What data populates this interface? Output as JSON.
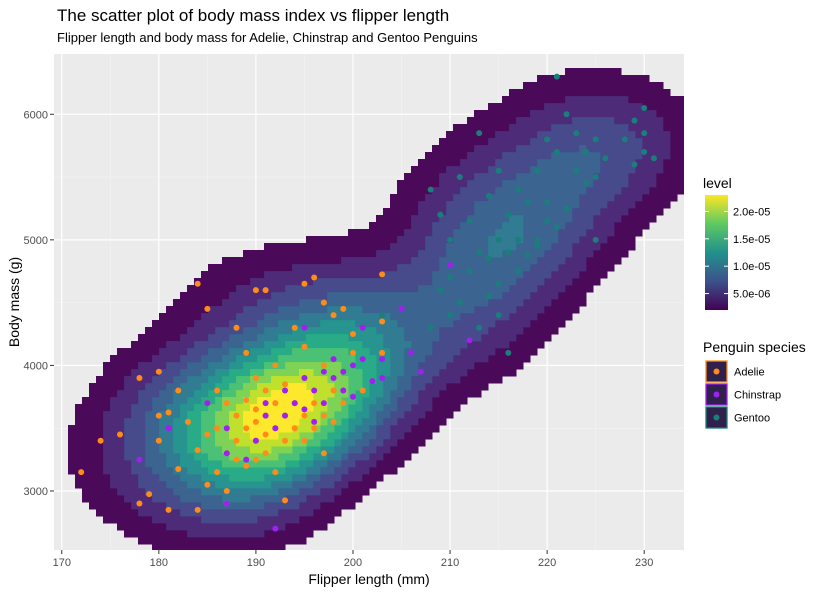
{
  "chart_data": {
    "type": "scatter",
    "title": "The scatter plot of body mass index vs flipper length",
    "subtitle": "Flipper length and body mass for Adelie, Chinstrap and Gentoo Penguins",
    "xlabel": "Flipper length (mm)",
    "ylabel": "Body mass (g)",
    "xlim": [
      169.2,
      234.1
    ],
    "ylim": [
      2530,
      6480
    ],
    "x_ticks": [
      170,
      180,
      190,
      200,
      210,
      220,
      230
    ],
    "y_ticks": [
      3000,
      4000,
      5000,
      6000
    ],
    "grid": true,
    "density_overlay": {
      "legend_title": "level",
      "legend_labels": [
        "2.0e-05",
        "1.5e-05",
        "1.0e-05",
        "5.0e-06"
      ],
      "legend_values": [
        2e-05,
        1.5e-05,
        1e-05,
        5e-06
      ],
      "range": [
        2e-06,
        2.3e-05
      ],
      "palette": [
        "#440154",
        "#482475",
        "#414487",
        "#355f8d",
        "#2a788e",
        "#21918c",
        "#22a884",
        "#44bf70",
        "#7ad151",
        "#bddf26",
        "#fde725"
      ]
    },
    "legend": {
      "title": "Penguin species",
      "position": "right"
    },
    "series": [
      {
        "name": "Adelie",
        "color": "#ff8c1a",
        "points": [
          [
            172,
            3150
          ],
          [
            174,
            3400
          ],
          [
            176,
            3450
          ],
          [
            178,
            3900
          ],
          [
            178,
            2900
          ],
          [
            179,
            2975
          ],
          [
            180,
            3600
          ],
          [
            180,
            3950
          ],
          [
            180,
            3400
          ],
          [
            181,
            2850
          ],
          [
            181,
            3625
          ],
          [
            182,
            3175
          ],
          [
            182,
            3800
          ],
          [
            183,
            3550
          ],
          [
            184,
            3325
          ],
          [
            184,
            4650
          ],
          [
            184,
            2850
          ],
          [
            185,
            3700
          ],
          [
            185,
            3450
          ],
          [
            185,
            4450
          ],
          [
            185,
            3050
          ],
          [
            186,
            3800
          ],
          [
            186,
            3500
          ],
          [
            186,
            3150
          ],
          [
            187,
            3700
          ],
          [
            187,
            3300
          ],
          [
            187,
            3000
          ],
          [
            187,
            2900
          ],
          [
            188,
            4300
          ],
          [
            188,
            3600
          ],
          [
            188,
            3400
          ],
          [
            188,
            3250
          ],
          [
            189,
            3725
          ],
          [
            189,
            3500
          ],
          [
            189,
            3200
          ],
          [
            189,
            4100
          ],
          [
            190,
            3650
          ],
          [
            190,
            3550
          ],
          [
            190,
            3400
          ],
          [
            190,
            3900
          ],
          [
            190,
            4600
          ],
          [
            190,
            3250
          ],
          [
            191,
            3600
          ],
          [
            191,
            3800
          ],
          [
            191,
            3450
          ],
          [
            191,
            4600
          ],
          [
            191,
            3300
          ],
          [
            192,
            3500
          ],
          [
            192,
            3700
          ],
          [
            192,
            4000
          ],
          [
            192,
            3150
          ],
          [
            193,
            3600
          ],
          [
            193,
            3400
          ],
          [
            193,
            3850
          ],
          [
            193,
            2925
          ],
          [
            194,
            3500
          ],
          [
            194,
            3700
          ],
          [
            194,
            4300
          ],
          [
            195,
            3600
          ],
          [
            195,
            3900
          ],
          [
            195,
            4650
          ],
          [
            195,
            3400
          ],
          [
            195,
            4150
          ],
          [
            196,
            3700
          ],
          [
            196,
            4700
          ],
          [
            196,
            3500
          ],
          [
            197,
            3600
          ],
          [
            197,
            4500
          ],
          [
            197,
            3300
          ],
          [
            197,
            4000
          ],
          [
            198,
            3800
          ],
          [
            198,
            4400
          ],
          [
            198,
            3550
          ],
          [
            199,
            4450
          ],
          [
            199,
            3700
          ],
          [
            200,
            4250
          ],
          [
            200,
            4100
          ],
          [
            201,
            3800
          ],
          [
            203,
            4725
          ],
          [
            203,
            4350
          ],
          [
            203,
            4100
          ]
        ]
      },
      {
        "name": "Chinstrap",
        "color": "#a020f0",
        "points": [
          [
            178,
            3250
          ],
          [
            181,
            3500
          ],
          [
            185,
            3700
          ],
          [
            187,
            3500
          ],
          [
            187,
            3300
          ],
          [
            187,
            2900
          ],
          [
            189,
            3250
          ],
          [
            190,
            3400
          ],
          [
            191,
            3700
          ],
          [
            191,
            3600
          ],
          [
            192,
            3500
          ],
          [
            192,
            2700
          ],
          [
            193,
            3600
          ],
          [
            193,
            3800
          ],
          [
            194,
            3700
          ],
          [
            195,
            3650
          ],
          [
            195,
            3900
          ],
          [
            195,
            4300
          ],
          [
            196,
            3550
          ],
          [
            196,
            3800
          ],
          [
            197,
            3950
          ],
          [
            197,
            3700
          ],
          [
            198,
            3900
          ],
          [
            198,
            4050
          ],
          [
            199,
            3950
          ],
          [
            199,
            3800
          ],
          [
            200,
            4000
          ],
          [
            200,
            3750
          ],
          [
            201,
            4050
          ],
          [
            201,
            4300
          ],
          [
            202,
            3875
          ],
          [
            203,
            4050
          ],
          [
            203,
            3900
          ],
          [
            205,
            4450
          ],
          [
            206,
            4100
          ],
          [
            207,
            3950
          ],
          [
            210,
            4800
          ],
          [
            212,
            4200
          ]
        ]
      },
      {
        "name": "Gentoo",
        "color": "#1a7f7a",
        "points": [
          [
            203,
            4400
          ],
          [
            208,
            4300
          ],
          [
            208,
            5400
          ],
          [
            209,
            4600
          ],
          [
            209,
            5200
          ],
          [
            210,
            4400
          ],
          [
            210,
            4700
          ],
          [
            210,
            5000
          ],
          [
            211,
            4500
          ],
          [
            211,
            5500
          ],
          [
            212,
            4750
          ],
          [
            212,
            5150
          ],
          [
            213,
            4300
          ],
          [
            213,
            4900
          ],
          [
            213,
            5850
          ],
          [
            214,
            4850
          ],
          [
            214,
            5350
          ],
          [
            214,
            4550
          ],
          [
            215,
            4650
          ],
          [
            215,
            5000
          ],
          [
            215,
            5550
          ],
          [
            215,
            4400
          ],
          [
            216,
            4900
          ],
          [
            216,
            5200
          ],
          [
            216,
            4100
          ],
          [
            217,
            4750
          ],
          [
            217,
            5400
          ],
          [
            217,
            5000
          ],
          [
            218,
            4875
          ],
          [
            218,
            5300
          ],
          [
            219,
            5000
          ],
          [
            219,
            5550
          ],
          [
            219,
            4950
          ],
          [
            220,
            5150
          ],
          [
            220,
            5800
          ],
          [
            220,
            5300
          ],
          [
            221,
            5100
          ],
          [
            221,
            5700
          ],
          [
            221,
            6300
          ],
          [
            222,
            5250
          ],
          [
            222,
            6000
          ],
          [
            223,
            5550
          ],
          [
            223,
            5850
          ],
          [
            224,
            5450
          ],
          [
            224,
            5700
          ],
          [
            225,
            5500
          ],
          [
            225,
            5000
          ],
          [
            225,
            5800
          ],
          [
            226,
            5650
          ],
          [
            228,
            5800
          ],
          [
            229,
            5950
          ],
          [
            229,
            5600
          ],
          [
            230,
            5700
          ],
          [
            230,
            6050
          ],
          [
            230,
            5850
          ],
          [
            231,
            5650
          ]
        ]
      }
    ]
  }
}
